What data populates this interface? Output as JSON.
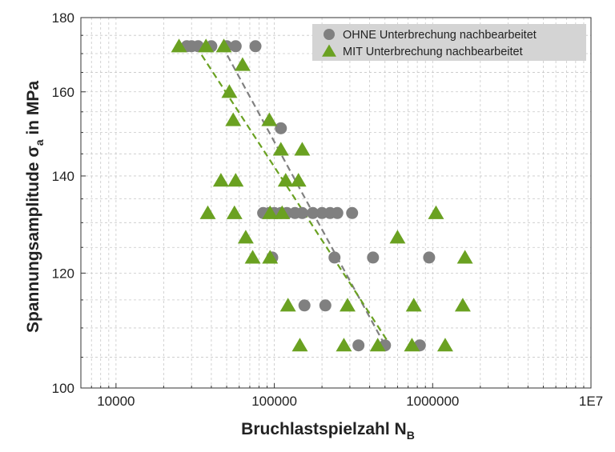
{
  "chart_data": {
    "type": "scatter",
    "xscale": "log",
    "yscale": "log",
    "xlim": [
      6000,
      10000000
    ],
    "ylim": [
      100,
      180
    ],
    "x_ticks": [
      10000,
      100000,
      1000000,
      10000000
    ],
    "x_tick_labels": [
      "10000",
      "100000",
      "1000000",
      "1E7"
    ],
    "y_ticks": [
      100,
      120,
      140,
      160,
      180
    ],
    "y_tick_labels": [
      "100",
      "120",
      "140",
      "160",
      "180"
    ],
    "xlabel_main": "Bruchlastspielzahl N",
    "xlabel_sub": "B",
    "ylabel_main": "Spannungsamplitude σ",
    "ylabel_sub": "a",
    "ylabel_tail": " in MPa",
    "grid": true,
    "legend_position": "top-right",
    "series": [
      {
        "name": "OHNE Unterbrechung nachbearbeitet",
        "marker": "circle",
        "color": "#808080",
        "points": [
          [
            28000,
            172
          ],
          [
            30000,
            172
          ],
          [
            33000,
            172
          ],
          [
            40000,
            172
          ],
          [
            50000,
            172
          ],
          [
            57000,
            172
          ],
          [
            76000,
            172
          ],
          [
            110000,
            151
          ],
          [
            85000,
            132
          ],
          [
            93000,
            132
          ],
          [
            100000,
            132
          ],
          [
            110000,
            132
          ],
          [
            120000,
            132
          ],
          [
            135000,
            132
          ],
          [
            150000,
            132
          ],
          [
            175000,
            132
          ],
          [
            200000,
            132
          ],
          [
            225000,
            132
          ],
          [
            250000,
            132
          ],
          [
            310000,
            132
          ],
          [
            97000,
            123
          ],
          [
            240000,
            123
          ],
          [
            420000,
            123
          ],
          [
            950000,
            123
          ],
          [
            155000,
            114
          ],
          [
            210000,
            114
          ],
          [
            340000,
            107
          ],
          [
            500000,
            107
          ],
          [
            830000,
            107
          ]
        ]
      },
      {
        "name": "MIT Unterbrechung nachbearbeitet",
        "marker": "triangle",
        "color": "#6aa121",
        "points": [
          [
            25000,
            172
          ],
          [
            37000,
            172
          ],
          [
            48000,
            172
          ],
          [
            63000,
            167
          ],
          [
            52000,
            160
          ],
          [
            55000,
            153
          ],
          [
            93000,
            153
          ],
          [
            110000,
            146
          ],
          [
            150000,
            146
          ],
          [
            46000,
            139
          ],
          [
            57000,
            139
          ],
          [
            118000,
            139
          ],
          [
            142000,
            139
          ],
          [
            38000,
            132
          ],
          [
            56000,
            132
          ],
          [
            94000,
            132
          ],
          [
            112000,
            132
          ],
          [
            1050000,
            132
          ],
          [
            66000,
            127
          ],
          [
            600000,
            127
          ],
          [
            73000,
            123
          ],
          [
            94000,
            123
          ],
          [
            1600000,
            123
          ],
          [
            122000,
            114
          ],
          [
            290000,
            114
          ],
          [
            760000,
            114
          ],
          [
            1550000,
            114
          ],
          [
            145000,
            107
          ],
          [
            275000,
            107
          ],
          [
            450000,
            107
          ],
          [
            740000,
            107
          ],
          [
            1200000,
            107
          ]
        ]
      }
    ],
    "trend_lines": [
      {
        "series": "OHNE Unterbrechung nachbearbeitet",
        "color": "#808080",
        "from": [
          47000,
          172
        ],
        "to": [
          500000,
          107
        ]
      },
      {
        "series": "MIT Unterbrechung nachbearbeitet",
        "color": "#6aa121",
        "from": [
          32000,
          172
        ],
        "to": [
          540000,
          107
        ]
      }
    ]
  }
}
